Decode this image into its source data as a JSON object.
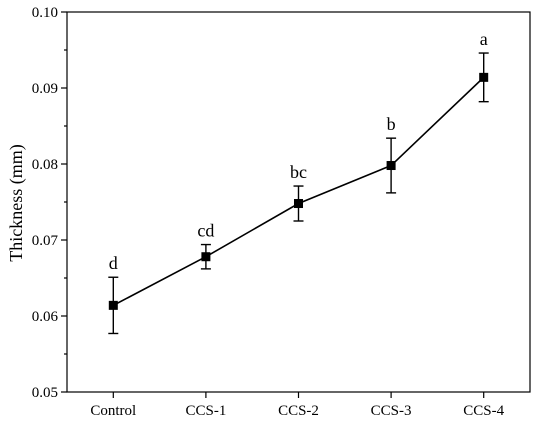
{
  "chart_data": {
    "type": "line",
    "title": "",
    "xlabel": "",
    "ylabel": "Thickness (mm)",
    "categories": [
      "Control",
      "CCS-1",
      "CCS-2",
      "CCS-3",
      "CCS-4"
    ],
    "ylim": [
      0.05,
      0.1
    ],
    "yticks": [
      0.05,
      0.06,
      0.07,
      0.08,
      0.09,
      0.1
    ],
    "ytick_labels": [
      "0.05",
      "0.06",
      "0.07",
      "0.08",
      "0.09",
      "0.10"
    ],
    "grid": false,
    "legend": "none",
    "series": [
      {
        "values": [
          0.0614,
          0.0678,
          0.0748,
          0.0798,
          0.0914
        ],
        "error": [
          0.0037,
          0.0016,
          0.0023,
          0.0036,
          0.0032
        ],
        "labels": [
          "d",
          "cd",
          "bc",
          "b",
          "a"
        ],
        "color": "#000000",
        "marker": "square"
      }
    ]
  }
}
